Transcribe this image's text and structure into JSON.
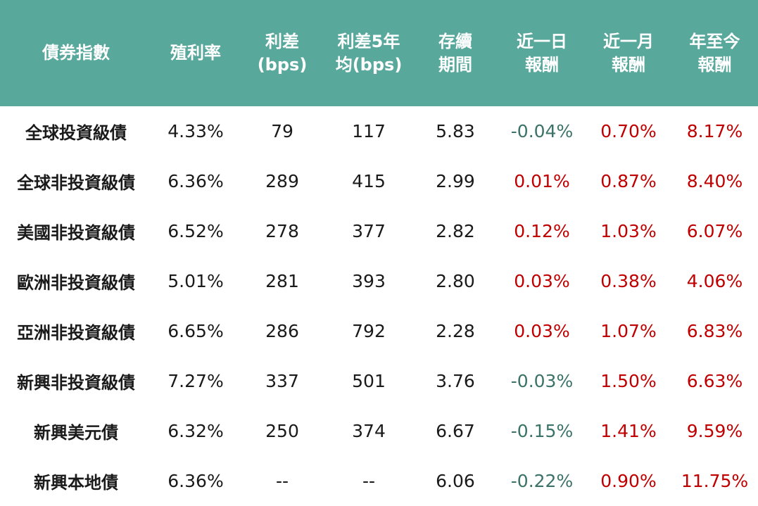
{
  "colors": {
    "header_bg": "#58a89c",
    "header_text": "#ffffff",
    "positive": "#c00000",
    "negative": "#3b7368"
  },
  "headers": [
    "債券指數",
    "殖利率",
    "利差\n(bps)",
    "利差5年\n均(bps)",
    "存續\n期間",
    "近一日\n報酬",
    "近一月\n報酬",
    "年至今\n報酬"
  ],
  "rows": [
    [
      "全球投資級債",
      "4.33%",
      "79",
      "117",
      "5.83",
      "-0.04%",
      "0.70%",
      "8.17%"
    ],
    [
      "全球非投資級債",
      "6.36%",
      "289",
      "415",
      "2.99",
      "0.01%",
      "0.87%",
      "8.40%"
    ],
    [
      "美國非投資級債",
      "6.52%",
      "278",
      "377",
      "2.82",
      "0.12%",
      "1.03%",
      "6.07%"
    ],
    [
      "歐洲非投資級債",
      "5.01%",
      "281",
      "393",
      "2.80",
      "0.03%",
      "0.38%",
      "4.06%"
    ],
    [
      "亞洲非投資級債",
      "6.65%",
      "286",
      "792",
      "2.28",
      "0.03%",
      "1.07%",
      "6.83%"
    ],
    [
      "新興非投資級債",
      "7.27%",
      "337",
      "501",
      "3.76",
      "-0.03%",
      "1.50%",
      "6.63%"
    ],
    [
      "新興美元債",
      "6.32%",
      "250",
      "374",
      "6.67",
      "-0.15%",
      "1.41%",
      "9.59%"
    ],
    [
      "新興本地債",
      "6.36%",
      "--",
      "--",
      "6.06",
      "-0.22%",
      "0.90%",
      "11.75%"
    ]
  ]
}
